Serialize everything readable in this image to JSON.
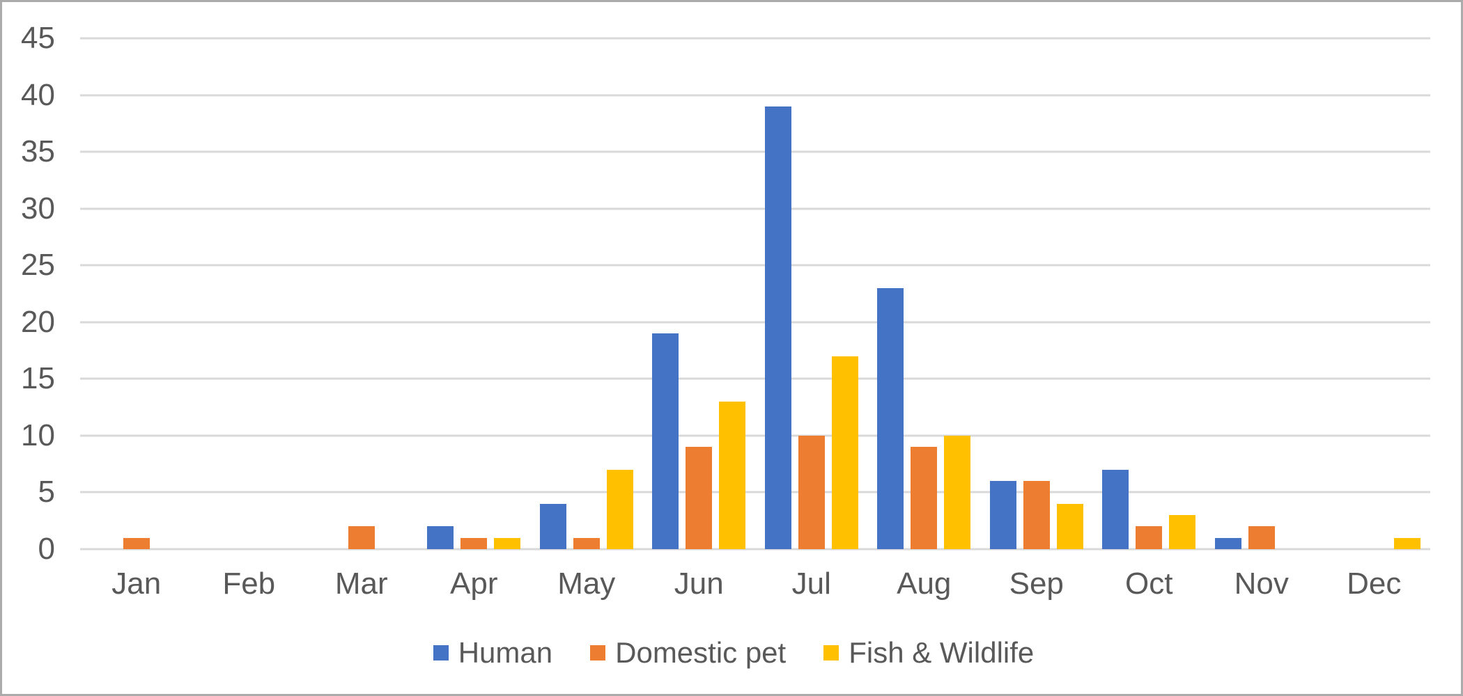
{
  "chart_data": {
    "type": "bar",
    "title": "",
    "xlabel": "",
    "ylabel": "",
    "categories": [
      "Jan",
      "Feb",
      "Mar",
      "Apr",
      "May",
      "Jun",
      "Jul",
      "Aug",
      "Sep",
      "Oct",
      "Nov",
      "Dec"
    ],
    "series": [
      {
        "name": "Human",
        "color": "#4472C4",
        "values": [
          0,
          0,
          0,
          2,
          4,
          19,
          39,
          23,
          6,
          7,
          1,
          0
        ]
      },
      {
        "name": "Domestic pet",
        "color": "#ED7D31",
        "values": [
          1,
          0,
          2,
          1,
          1,
          9,
          10,
          9,
          6,
          2,
          2,
          0
        ]
      },
      {
        "name": "Fish & Wildlife",
        "color": "#FFC000",
        "values": [
          0,
          0,
          0,
          1,
          7,
          13,
          17,
          10,
          4,
          3,
          0,
          1
        ]
      }
    ],
    "ylim": [
      0,
      45
    ],
    "yticks": [
      0,
      5,
      10,
      15,
      20,
      25,
      30,
      35,
      40,
      45
    ],
    "grid": true,
    "legend_position": "bottom"
  },
  "colors": {
    "gridline": "#d9d9d9",
    "axis_text": "#595959",
    "frame_border": "#ababab",
    "background": "#ffffff"
  }
}
